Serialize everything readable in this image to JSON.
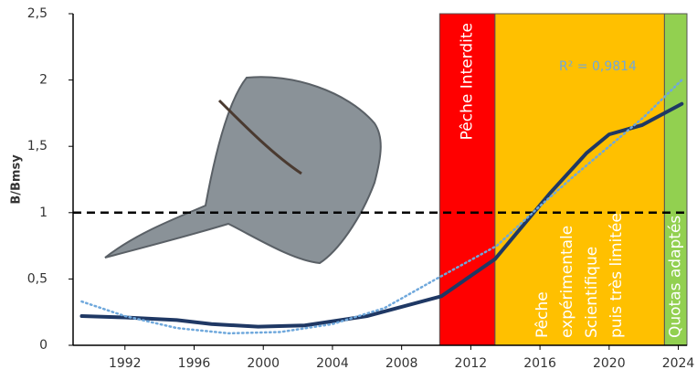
{
  "chart_data": {
    "type": "line",
    "y_label": "B/Bmsy",
    "annotation": "R² = 0,9814",
    "xlim": [
      1989,
      2024.5
    ],
    "xticks": [
      1992,
      1996,
      2000,
      2004,
      2008,
      2012,
      2016,
      2020,
      2024
    ],
    "ylim": [
      0,
      2.5
    ],
    "yticks": [
      0,
      {
        "value": 0.5,
        "label": "0,5"
      },
      1,
      {
        "value": 1.5,
        "label": "1,5"
      },
      2,
      {
        "value": 2.5,
        "label": "2,5"
      }
    ],
    "reference_line": 1,
    "regions": [
      {
        "label": [
          "Pêche Interdite"
        ],
        "start": 2010.2,
        "end": 2013.4,
        "color": "#ff0000"
      },
      {
        "label": [
          "Pêche",
          "expérimentale",
          "Scientifique",
          "puis très limitée"
        ],
        "start": 2013.4,
        "end": 2023.2,
        "color": "#ffc000"
      },
      {
        "label": [
          "Quotas adaptés"
        ],
        "start": 2023.2,
        "end": 2024.5,
        "color": "#92d050"
      }
    ],
    "series": [
      {
        "color": "#1f3864",
        "style": "solid",
        "x": [
          1989.5,
          1992,
          1995,
          1997,
          1999.7,
          2002.4,
          2006,
          2010.3,
          2013.4,
          2016.6,
          2018.7,
          2020,
          2021.9,
          2024.2
        ],
        "values": [
          0.22,
          0.21,
          0.19,
          0.16,
          0.14,
          0.15,
          0.22,
          0.37,
          0.65,
          1.15,
          1.45,
          1.59,
          1.66,
          1.82
        ]
      },
      {
        "color": "#6fa8dc",
        "style": "dotted",
        "x": [
          1989.5,
          1992,
          1995,
          1998,
          2001,
          2004,
          2007,
          2010,
          2013.5,
          2016,
          2018,
          2020,
          2022,
          2024.2
        ],
        "values": [
          0.33,
          0.22,
          0.13,
          0.09,
          0.1,
          0.16,
          0.28,
          0.5,
          0.75,
          1.05,
          1.28,
          1.5,
          1.72,
          2.0
        ]
      }
    ]
  }
}
